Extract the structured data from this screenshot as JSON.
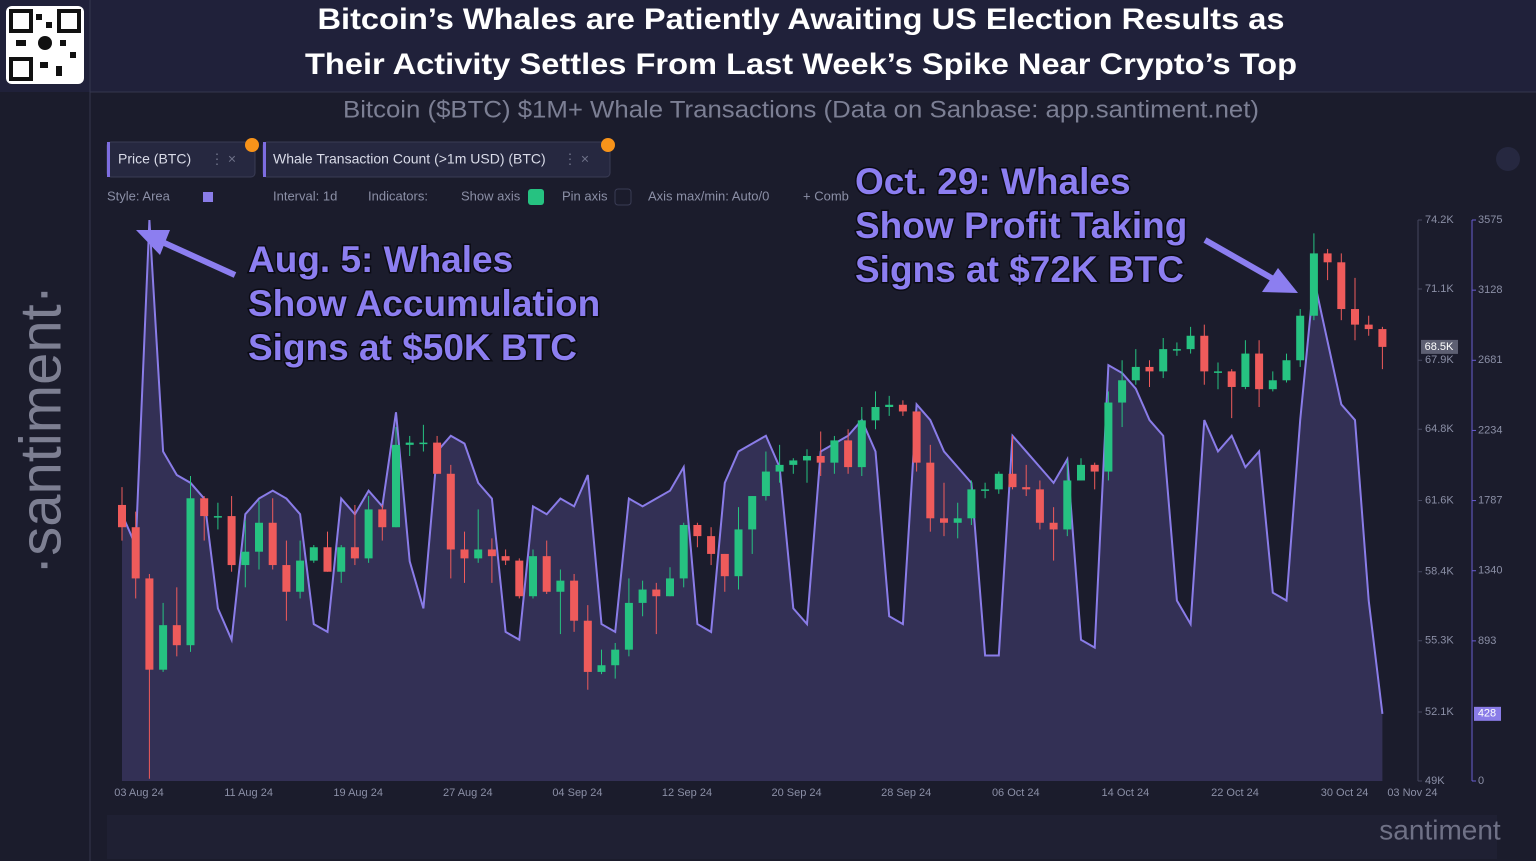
{
  "header": {
    "title_lines": [
      "Bitcoin’s Whales are Patiently Awaiting US Election Results as",
      "Their Activity Settles From Last Week’s Spike Near Crypto’s Top"
    ],
    "subtitle": "Bitcoin ($BTC) $1M+ Whale Transactions (Data on Sanbase: app.santiment.net)"
  },
  "brand": "·santiment·",
  "watermark": "santiment",
  "toolbar": [
    "Style: Area",
    "Interval: 1d",
    "Indicators:",
    "Show axis",
    "Pin axis",
    "Axis max/min: Auto/0",
    "+ Comb"
  ],
  "chart_data": {
    "type": "combo",
    "categories": [
      "03 Aug 24",
      null,
      null,
      null,
      null,
      null,
      null,
      null,
      "11 Aug 24",
      null,
      null,
      null,
      null,
      null,
      null,
      null,
      "19 Aug 24",
      null,
      null,
      null,
      null,
      null,
      null,
      null,
      "27 Aug 24",
      null,
      null,
      null,
      null,
      null,
      null,
      null,
      "04 Sep 24",
      null,
      null,
      null,
      null,
      null,
      null,
      null,
      "12 Sep 24",
      null,
      null,
      null,
      null,
      null,
      null,
      null,
      "20 Sep 24",
      null,
      null,
      null,
      null,
      null,
      null,
      null,
      "28 Sep 24",
      null,
      null,
      null,
      null,
      null,
      null,
      null,
      "06 Oct 24",
      null,
      null,
      null,
      null,
      null,
      null,
      null,
      "14 Oct 24",
      null,
      null,
      null,
      null,
      null,
      null,
      null,
      "22 Oct 24",
      null,
      null,
      null,
      null,
      null,
      null,
      null,
      "30 Oct 24",
      null,
      null,
      null,
      "03 Nov 24"
    ],
    "series": [
      {
        "name": "Price (BTC)",
        "type": "candlestick",
        "color_up": "#26c281",
        "color_down": "#ef5b5b",
        "last_label": "68.5K",
        "ohlc": [
          [
            61.4,
            62.2,
            59.8,
            60.4
          ],
          [
            60.4,
            61.1,
            57.2,
            58.1
          ],
          [
            58.1,
            58.3,
            49.1,
            54.0
          ],
          [
            54.0,
            57.0,
            53.9,
            56.0
          ],
          [
            56.0,
            57.7,
            54.6,
            55.1
          ],
          [
            55.1,
            62.7,
            54.8,
            61.7
          ],
          [
            61.7,
            61.8,
            59.8,
            60.9
          ],
          [
            60.9,
            61.5,
            60.3,
            60.9
          ],
          [
            60.9,
            61.8,
            58.4,
            58.7
          ],
          [
            58.7,
            60.7,
            57.7,
            59.3
          ],
          [
            59.3,
            61.6,
            58.5,
            60.6
          ],
          [
            60.6,
            61.7,
            58.5,
            58.7
          ],
          [
            58.7,
            59.8,
            56.2,
            57.5
          ],
          [
            57.5,
            59.8,
            57.2,
            58.9
          ],
          [
            58.9,
            59.6,
            58.8,
            59.5
          ],
          [
            59.5,
            60.2,
            58.4,
            58.4
          ],
          [
            58.4,
            59.6,
            57.9,
            59.5
          ],
          [
            59.5,
            61.4,
            58.7,
            59.0
          ],
          [
            59.0,
            61.8,
            58.8,
            61.2
          ],
          [
            61.2,
            61.4,
            59.8,
            60.4
          ],
          [
            60.4,
            64.9,
            60.4,
            64.1
          ],
          [
            64.1,
            64.5,
            63.6,
            64.2
          ],
          [
            64.2,
            65.0,
            63.8,
            64.2
          ],
          [
            64.2,
            64.5,
            62.8,
            62.8
          ],
          [
            62.8,
            63.2,
            58.1,
            59.4
          ],
          [
            59.4,
            60.2,
            57.9,
            59.0
          ],
          [
            59.0,
            61.2,
            58.8,
            59.4
          ],
          [
            59.4,
            59.9,
            57.9,
            59.1
          ],
          [
            59.1,
            59.4,
            58.7,
            58.9
          ],
          [
            58.9,
            59.0,
            57.2,
            57.3
          ],
          [
            57.3,
            59.4,
            57.2,
            59.1
          ],
          [
            59.1,
            59.8,
            57.4,
            57.5
          ],
          [
            57.5,
            58.5,
            55.6,
            58.0
          ],
          [
            58.0,
            58.3,
            55.7,
            56.2
          ],
          [
            56.2,
            56.9,
            53.1,
            53.9
          ],
          [
            53.9,
            54.9,
            53.8,
            54.2
          ],
          [
            54.2,
            55.2,
            53.6,
            54.9
          ],
          [
            54.9,
            58.1,
            54.6,
            57.0
          ],
          [
            57.0,
            58.0,
            56.4,
            57.6
          ],
          [
            57.6,
            57.9,
            55.6,
            57.3
          ],
          [
            57.3,
            58.6,
            57.3,
            58.1
          ],
          [
            58.1,
            60.6,
            57.7,
            60.5
          ],
          [
            60.5,
            60.6,
            59.5,
            60.0
          ],
          [
            60.0,
            60.4,
            58.7,
            59.2
          ],
          [
            59.2,
            59.2,
            57.5,
            58.2
          ],
          [
            58.2,
            61.3,
            57.6,
            60.3
          ],
          [
            60.3,
            61.8,
            59.2,
            61.8
          ],
          [
            61.8,
            63.8,
            61.6,
            62.9
          ],
          [
            62.9,
            64.1,
            62.4,
            63.2
          ],
          [
            63.2,
            63.5,
            62.8,
            63.4
          ],
          [
            63.4,
            63.9,
            62.4,
            63.6
          ],
          [
            63.6,
            64.7,
            62.7,
            63.3
          ],
          [
            63.3,
            64.5,
            62.8,
            64.3
          ],
          [
            64.3,
            64.8,
            62.8,
            63.1
          ],
          [
            63.1,
            65.8,
            62.7,
            65.2
          ],
          [
            65.2,
            66.5,
            64.8,
            65.8
          ],
          [
            65.8,
            66.3,
            65.4,
            65.9
          ],
          [
            65.9,
            66.1,
            65.4,
            65.6
          ],
          [
            65.6,
            65.6,
            62.9,
            63.3
          ],
          [
            63.3,
            64.1,
            60.2,
            60.8
          ],
          [
            60.8,
            62.4,
            60.0,
            60.6
          ],
          [
            60.6,
            61.5,
            59.9,
            60.8
          ],
          [
            60.8,
            62.5,
            60.5,
            62.1
          ],
          [
            62.1,
            62.4,
            61.7,
            62.1
          ],
          [
            62.1,
            62.9,
            61.9,
            62.8
          ],
          [
            62.8,
            64.5,
            62.1,
            62.2
          ],
          [
            62.2,
            63.2,
            61.8,
            62.1
          ],
          [
            62.1,
            62.5,
            60.3,
            60.6
          ],
          [
            60.6,
            61.3,
            58.9,
            60.3
          ],
          [
            60.3,
            63.4,
            60.0,
            62.5
          ],
          [
            62.5,
            63.5,
            62.5,
            63.2
          ],
          [
            63.2,
            63.3,
            62.1,
            62.9
          ],
          [
            62.9,
            66.5,
            62.5,
            66.0
          ],
          [
            66.0,
            67.9,
            64.9,
            67.0
          ],
          [
            67.0,
            68.4,
            66.8,
            67.6
          ],
          [
            67.6,
            67.9,
            66.7,
            67.4
          ],
          [
            67.4,
            68.9,
            67.1,
            68.4
          ],
          [
            68.4,
            68.7,
            68.1,
            68.4
          ],
          [
            68.4,
            69.4,
            68.2,
            69.0
          ],
          [
            69.0,
            69.5,
            66.8,
            67.4
          ],
          [
            67.4,
            67.8,
            66.6,
            67.4
          ],
          [
            67.4,
            67.5,
            65.3,
            66.7
          ],
          [
            66.7,
            68.8,
            66.6,
            68.2
          ],
          [
            68.2,
            68.8,
            65.8,
            66.6
          ],
          [
            66.6,
            67.4,
            66.5,
            67.0
          ],
          [
            67.0,
            68.2,
            66.9,
            67.9
          ],
          [
            67.9,
            70.2,
            67.6,
            69.9
          ],
          [
            69.9,
            73.6,
            69.7,
            72.7
          ],
          [
            72.7,
            72.9,
            71.5,
            72.3
          ],
          [
            72.3,
            72.7,
            69.7,
            70.2
          ],
          [
            70.2,
            71.6,
            68.8,
            69.5
          ],
          [
            69.5,
            69.9,
            69.0,
            69.3
          ],
          [
            69.3,
            69.4,
            67.5,
            68.5
          ]
        ]
      },
      {
        "name": "Whale Transaction Count (>1m USD) (BTC)",
        "type": "area",
        "axis": "y2",
        "color": "#8a7ce8",
        "last_label": 428,
        "values": [
          1700,
          1500,
          3575,
          2100,
          1950,
          1900,
          1800,
          1100,
          900,
          1700,
          1800,
          1850,
          1800,
          1700,
          1000,
          950,
          1800,
          1700,
          1850,
          1750,
          2350,
          1400,
          1100,
          2100,
          2200,
          2150,
          1900,
          1800,
          950,
          900,
          1750,
          1700,
          1800,
          1750,
          1950,
          1000,
          950,
          1800,
          1750,
          1800,
          1850,
          2000,
          1000,
          950,
          1900,
          2100,
          2150,
          2200,
          2000,
          1100,
          1000,
          2100,
          2150,
          2200,
          2300,
          2100,
          1050,
          1000,
          2400,
          2300,
          2100,
          2000,
          1900,
          800,
          800,
          2200,
          2100,
          2000,
          1900,
          2050,
          900,
          850,
          2650,
          2600,
          2500,
          2300,
          2200,
          1150,
          1000,
          2300,
          2100,
          2200,
          2000,
          2100,
          1200,
          1150,
          2300,
          3200,
          2800,
          2400,
          2300,
          1150,
          428
        ]
      }
    ],
    "ylim": [
      49,
      74.2
    ],
    "yticks": [
      {
        "value": 49,
        "label": "49K"
      },
      {
        "value": 52.1,
        "label": "52.1K"
      },
      {
        "value": 55.3,
        "label": "55.3K"
      },
      {
        "value": 58.4,
        "label": "58.4K"
      },
      {
        "value": 61.6,
        "label": "61.6K"
      },
      {
        "value": 64.8,
        "label": "64.8K"
      },
      {
        "value": 67.9,
        "label": "67.9K"
      },
      {
        "value": 71.1,
        "label": "71.1K"
      },
      {
        "value": 74.2,
        "label": "74.2K"
      }
    ],
    "y2lim": [
      0,
      3575
    ],
    "y2ticks": [
      0,
      893,
      1340,
      1787,
      2234,
      2681,
      3128,
      3575
    ],
    "annotations": [
      {
        "lines": [
          "Aug. 5: Whales",
          "Show Accumulation",
          "Signs at $50K BTC"
        ]
      },
      {
        "lines": [
          "Oct. 29: Whales",
          "Show Profit Taking",
          "Signs at $72K BTC"
        ]
      }
    ]
  }
}
